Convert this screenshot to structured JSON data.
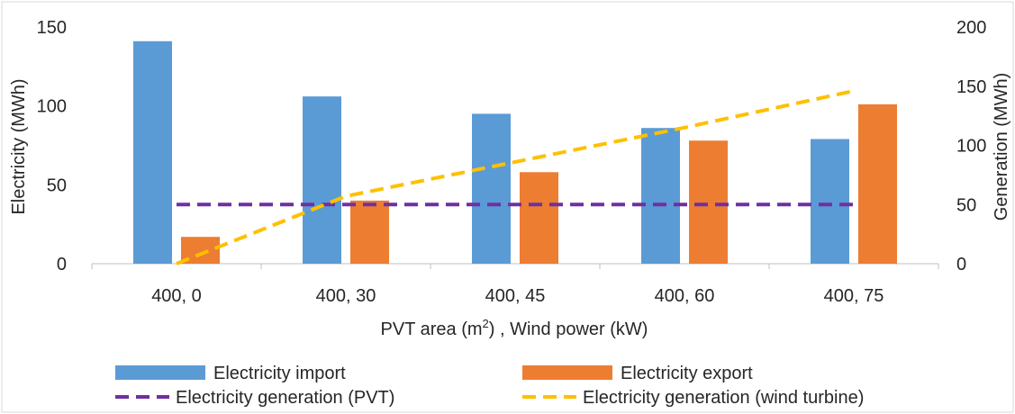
{
  "chart_data": {
    "type": "bar",
    "title": "",
    "xlabel_main": "PVT area (m",
    "xlabel_sup": "2",
    "xlabel_rest": ") , Wind power (kW)",
    "ylabel": "Electricity (MWh)",
    "y2label": "Generation (MWh)",
    "categories": [
      "400, 0",
      "400, 30",
      "400, 45",
      "400, 60",
      "400, 75"
    ],
    "ylim": [
      0,
      150
    ],
    "yticks": [
      "0",
      "50",
      "100",
      "150"
    ],
    "y2lim": [
      0,
      200
    ],
    "y2ticks": [
      "0",
      "50",
      "100",
      "150",
      "200"
    ],
    "legend_position": "bottom",
    "grid": false,
    "series": [
      {
        "name": "Electricity import",
        "kind": "bar",
        "axis": "left",
        "color": "#5b9bd5",
        "values": [
          141,
          106,
          95,
          86,
          79
        ]
      },
      {
        "name": "Electricity export",
        "kind": "bar",
        "axis": "left",
        "color": "#ed7d31",
        "values": [
          17,
          40,
          58,
          78,
          101
        ]
      },
      {
        "name": "Electricity generation (PVT)",
        "kind": "line",
        "style": "dashed",
        "axis": "right",
        "color": "#7030a0",
        "values": [
          50,
          50,
          50,
          50,
          50
        ]
      },
      {
        "name": "Electricity generation (wind turbine)",
        "kind": "line",
        "style": "dashed",
        "axis": "right",
        "color": "#ffc000",
        "values": [
          0,
          57,
          86,
          115,
          146
        ]
      }
    ]
  }
}
